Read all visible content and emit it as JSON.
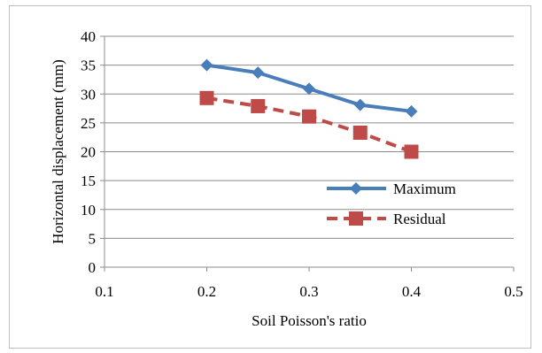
{
  "chart_data": {
    "type": "line",
    "title": "",
    "xlabel": "Soil Poisson's ratio",
    "ylabel": "Horizontal displacement (mm)",
    "xlim": [
      0.1,
      0.5
    ],
    "ylim": [
      0,
      40
    ],
    "xticks": [
      0.1,
      0.2,
      0.3,
      0.4,
      0.5
    ],
    "xtick_labels": [
      "0.1",
      "0.2",
      "0.3",
      "0.4",
      "0.5"
    ],
    "yticks": [
      0,
      5,
      10,
      15,
      20,
      25,
      30,
      35,
      40
    ],
    "ytick_labels": [
      "0",
      "5",
      "10",
      "15",
      "20",
      "25",
      "30",
      "35",
      "40"
    ],
    "grid": "horizontal",
    "legend_position": "right",
    "series": [
      {
        "name": "Maximum",
        "x": [
          0.2,
          0.25,
          0.3,
          0.35,
          0.4
        ],
        "y": [
          35,
          33.7,
          30.9,
          28.1,
          27
        ],
        "color": "#4a7ebb",
        "line_style": "solid",
        "marker": "diamond"
      },
      {
        "name": "Residual",
        "x": [
          0.2,
          0.25,
          0.3,
          0.35,
          0.4
        ],
        "y": [
          29.3,
          27.9,
          26.1,
          23.3,
          20
        ],
        "color": "#be4b48",
        "line_style": "dashed",
        "marker": "square"
      }
    ]
  }
}
